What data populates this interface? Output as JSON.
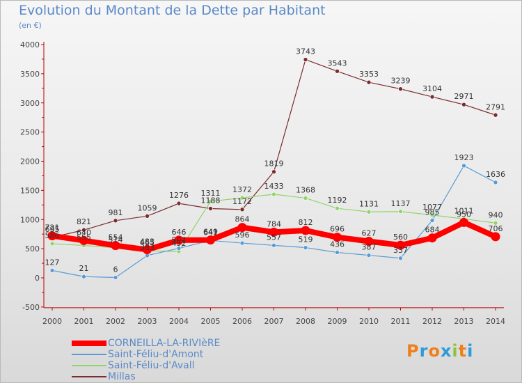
{
  "header": {
    "title": "Evolution du Montant de la Dette par Habitant",
    "subtitle": "(en €)"
  },
  "brand": {
    "letters": [
      "P",
      "r",
      "o",
      "x",
      "i",
      "t",
      "i"
    ],
    "colors": [
      "#ef7f1a",
      "#2f9ad8",
      "#ef7f1a",
      "#2f9ad8",
      "#8bc53f",
      "#ef7f1a",
      "#2f9ad8"
    ]
  },
  "chart_data": {
    "type": "line",
    "title": "Evolution du Montant de la Dette par Habitant",
    "subtitle": "(en €)",
    "xlabel": "",
    "ylabel": "",
    "x": [
      "2000",
      "2001",
      "2002",
      "2003",
      "2004",
      "2005",
      "2006",
      "2007",
      "2008",
      "2009",
      "2010",
      "2011",
      "2012",
      "2013",
      "2014"
    ],
    "ylim": [
      -500,
      4000
    ],
    "yticks": [
      -500,
      0,
      500,
      1000,
      1500,
      2000,
      2500,
      3000,
      3500,
      4000
    ],
    "grid": false,
    "legend_position": "bottom-left",
    "series": [
      {
        "name": "CORNEILLA-LA-RIVIèRE",
        "color": "#ff0000",
        "values": [
          721,
          640,
          554,
          483,
          646,
          649,
          864,
          784,
          812,
          696,
          627,
          560,
          684,
          950,
          706
        ],
        "labels": [
          "721",
          "640",
          "554",
          "483",
          "646",
          "649",
          "864",
          "784",
          "812",
          "696",
          "627",
          "560",
          "684",
          "950",
          "706"
        ]
      },
      {
        "name": "Saint-Féliu-d'Amont",
        "color": "#5b9bd5",
        "values": [
          127,
          21,
          6,
          383,
          507,
          641,
          596,
          557,
          519,
          436,
          387,
          337,
          985,
          1923,
          1636
        ],
        "labels": [
          "127",
          "21",
          "6",
          "383",
          "507",
          "641",
          "596",
          "557",
          "519",
          "436",
          "387",
          "337",
          "985",
          "1923",
          "1636"
        ]
      },
      {
        "name": "Saint-Féliu-d'Avall",
        "color": "#90d46a",
        "values": [
          586,
          555,
          514,
          465,
          452,
          1311,
          1372,
          1433,
          1368,
          1192,
          1131,
          1137,
          1077,
          1011,
          940
        ],
        "labels": [
          "586",
          "555",
          "514",
          "465",
          "452",
          "1311",
          "1372",
          "1433",
          "1368",
          "1192",
          "1131",
          "1137",
          "1077",
          "1011",
          "940"
        ]
      },
      {
        "name": "Millas",
        "color": "#7b2c2c",
        "values": [
          695,
          821,
          981,
          1059,
          1276,
          1188,
          1172,
          1819,
          3743,
          3543,
          3353,
          3239,
          3104,
          2971,
          2791
        ],
        "labels": [
          "695",
          "821",
          "981",
          "1059",
          "1276",
          "1188",
          "1172",
          "1819",
          "3743",
          "3543",
          "3353",
          "3239",
          "3104",
          "2971",
          "2791"
        ]
      }
    ]
  }
}
